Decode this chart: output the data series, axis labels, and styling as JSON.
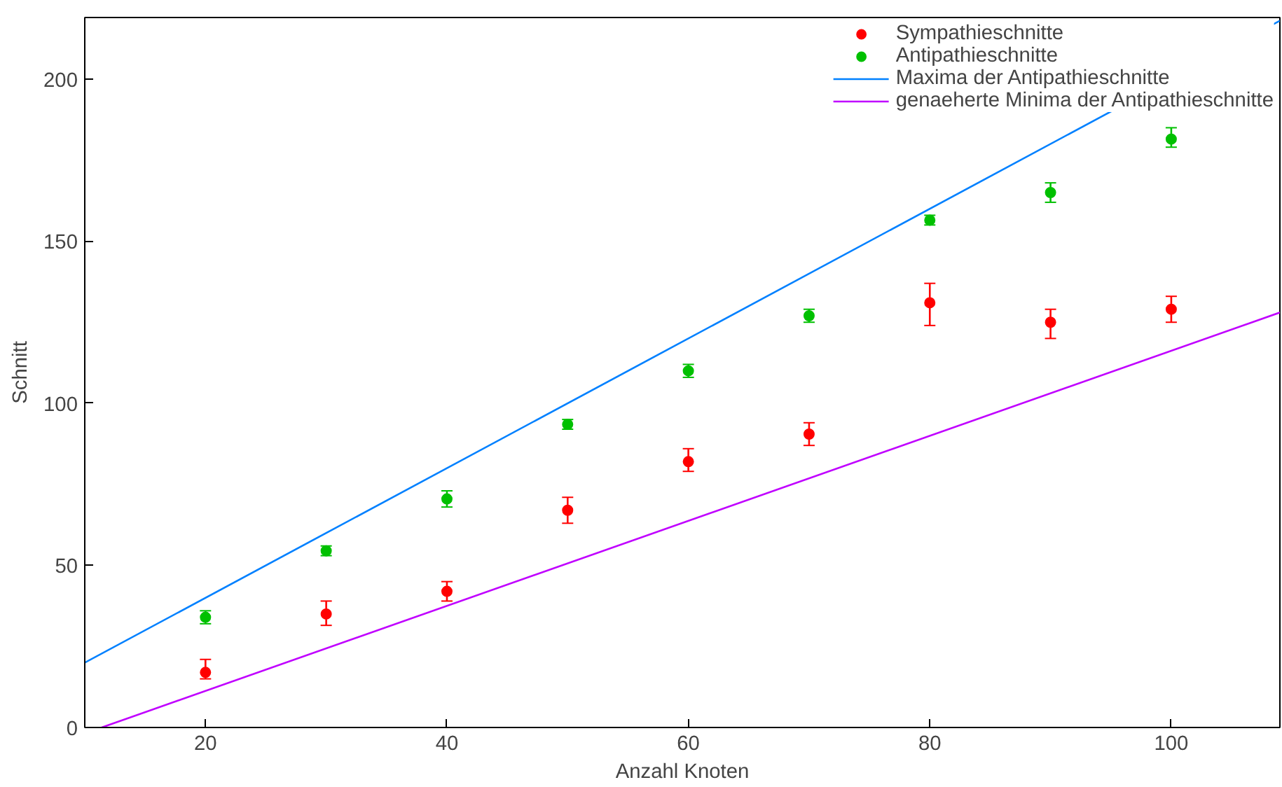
{
  "chart_data": {
    "type": "scatter",
    "xlabel": "Anzahl Knoten",
    "ylabel": "Schnitt",
    "xlim": [
      10,
      109
    ],
    "ylim": [
      0,
      219
    ],
    "xticks": [
      20,
      40,
      60,
      80,
      100
    ],
    "yticks": [
      0,
      50,
      100,
      150,
      200
    ],
    "grid": false,
    "legend": "top right",
    "series": [
      {
        "name": "Sympathieschnitte",
        "color": "#ff0000",
        "marker": "circle",
        "x": [
          20,
          30,
          40,
          50,
          60,
          70,
          80,
          90,
          100
        ],
        "values": [
          17,
          35,
          42,
          67,
          82,
          90.5,
          131,
          125,
          129
        ],
        "errors": [
          [
            15,
            21
          ],
          [
            31.5,
            39
          ],
          [
            39,
            45
          ],
          [
            63,
            71
          ],
          [
            79,
            86
          ],
          [
            87,
            94
          ],
          [
            124,
            137
          ],
          [
            120,
            129
          ],
          [
            125,
            133
          ]
        ]
      },
      {
        "name": "Antipathieschnitte",
        "color": "#00c000",
        "marker": "circle",
        "x": [
          20,
          30,
          40,
          50,
          60,
          70,
          80,
          90,
          100
        ],
        "values": [
          34,
          54.5,
          70.5,
          93.5,
          110,
          127,
          156.5,
          165,
          181.5
        ],
        "errors": [
          [
            32,
            36
          ],
          [
            53,
            56
          ],
          [
            68,
            73
          ],
          [
            92,
            95
          ],
          [
            108,
            112
          ],
          [
            125,
            129
          ],
          [
            155,
            158
          ],
          [
            162,
            168
          ],
          [
            179,
            185
          ]
        ]
      },
      {
        "name": "Maxima der Antipathieschnitte",
        "type": "line",
        "color": "#0080ff",
        "x": [
          10,
          109
        ],
        "values": [
          20,
          218
        ]
      },
      {
        "name": "genaeherte Minima der Antipathieschnitte",
        "type": "line",
        "color": "#c000ff",
        "x": [
          11.4,
          109
        ],
        "values": [
          0,
          128
        ]
      }
    ]
  }
}
